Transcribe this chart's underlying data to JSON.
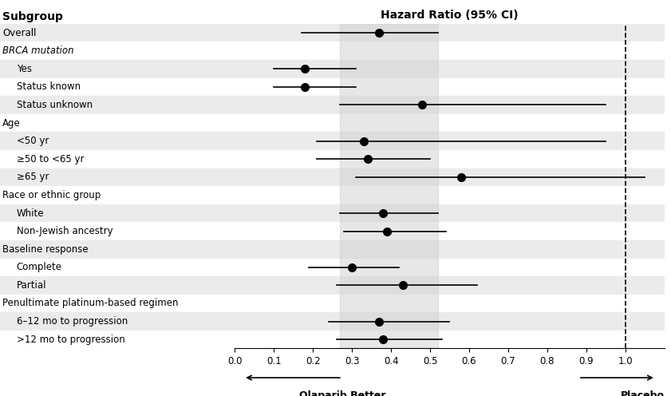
{
  "title": "Hazard Ratio (95% CI)",
  "subgroups": [
    {
      "label": "Overall",
      "hr": 0.37,
      "ci_low": 0.17,
      "ci_high": 0.52,
      "indent": 0,
      "is_header": false,
      "row_color": "#ebebeb"
    },
    {
      "label": "BRCA mutation",
      "hr": null,
      "ci_low": null,
      "ci_high": null,
      "indent": 0,
      "is_header": true,
      "row_color": "#ffffff"
    },
    {
      "label": "Yes",
      "hr": 0.18,
      "ci_low": 0.1,
      "ci_high": 0.31,
      "indent": 1,
      "is_header": false,
      "row_color": "#ebebeb"
    },
    {
      "label": "Status known",
      "hr": 0.18,
      "ci_low": 0.1,
      "ci_high": 0.31,
      "indent": 1,
      "is_header": false,
      "row_color": "#ffffff"
    },
    {
      "label": "Status unknown",
      "hr": 0.48,
      "ci_low": 0.27,
      "ci_high": 0.95,
      "indent": 1,
      "is_header": false,
      "row_color": "#ebebeb"
    },
    {
      "label": "Age",
      "hr": null,
      "ci_low": null,
      "ci_high": null,
      "indent": 0,
      "is_header": true,
      "row_color": "#ffffff"
    },
    {
      "label": "<50 yr",
      "hr": 0.33,
      "ci_low": 0.21,
      "ci_high": 0.95,
      "indent": 1,
      "is_header": false,
      "row_color": "#ebebeb"
    },
    {
      "label": "≥50 to <65 yr",
      "hr": 0.34,
      "ci_low": 0.21,
      "ci_high": 0.5,
      "indent": 1,
      "is_header": false,
      "row_color": "#ffffff"
    },
    {
      "label": "≥65 yr",
      "hr": 0.58,
      "ci_low": 0.31,
      "ci_high": 1.05,
      "indent": 1,
      "is_header": false,
      "row_color": "#ebebeb"
    },
    {
      "label": "Race or ethnic group",
      "hr": null,
      "ci_low": null,
      "ci_high": null,
      "indent": 0,
      "is_header": true,
      "row_color": "#ffffff"
    },
    {
      "label": "White",
      "hr": 0.38,
      "ci_low": 0.27,
      "ci_high": 0.52,
      "indent": 1,
      "is_header": false,
      "row_color": "#ebebeb"
    },
    {
      "label": "Non-Jewish ancestry",
      "hr": 0.39,
      "ci_low": 0.28,
      "ci_high": 0.54,
      "indent": 1,
      "is_header": false,
      "row_color": "#ffffff"
    },
    {
      "label": "Baseline response",
      "hr": null,
      "ci_low": null,
      "ci_high": null,
      "indent": 0,
      "is_header": true,
      "row_color": "#ebebeb"
    },
    {
      "label": "Complete",
      "hr": 0.3,
      "ci_low": 0.19,
      "ci_high": 0.42,
      "indent": 1,
      "is_header": false,
      "row_color": "#ffffff"
    },
    {
      "label": "Partial",
      "hr": 0.43,
      "ci_low": 0.26,
      "ci_high": 0.62,
      "indent": 1,
      "is_header": false,
      "row_color": "#ebebeb"
    },
    {
      "label": "Penultimate platinum-based regimen",
      "hr": null,
      "ci_low": null,
      "ci_high": null,
      "indent": 0,
      "is_header": true,
      "row_color": "#ffffff"
    },
    {
      "label": "6–12 mo to progression",
      "hr": 0.37,
      "ci_low": 0.24,
      "ci_high": 0.55,
      "indent": 1,
      "is_header": false,
      "row_color": "#ebebeb"
    },
    {
      "label": ">12 mo to progression",
      "hr": 0.38,
      "ci_low": 0.26,
      "ci_high": 0.53,
      "indent": 1,
      "is_header": false,
      "row_color": "#ffffff"
    }
  ],
  "x_min": 0.0,
  "x_max": 1.1,
  "x_ticks": [
    0.0,
    0.1,
    0.2,
    0.3,
    0.4,
    0.5,
    0.6,
    0.7,
    0.8,
    0.9,
    1.0
  ],
  "shade_low": 0.27,
  "shade_high": 0.52,
  "ref_line": 1.0,
  "left_label": "Olaparib Better",
  "right_label": "Placebo\nBetter",
  "marker_color": "#000000",
  "ci_color": "#000000",
  "header_color": "#000000",
  "subgroup_label_color": "#000000",
  "header_label_italic_prefix": "BRCA"
}
